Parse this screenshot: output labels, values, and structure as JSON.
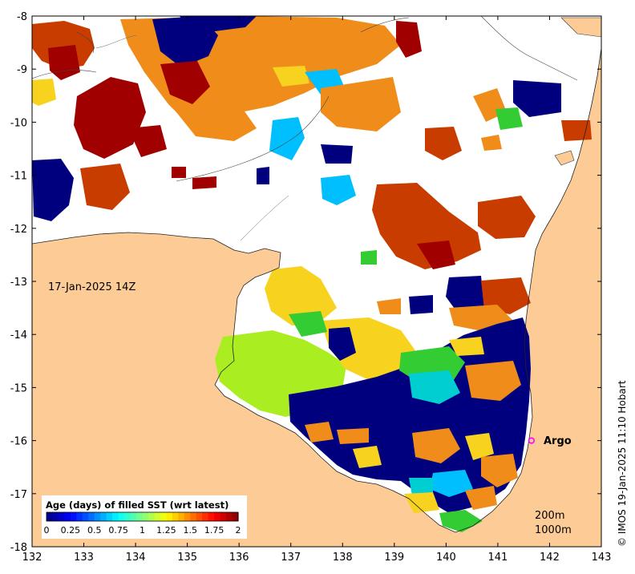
{
  "map": {
    "timestamp_label": "17-Jan-2025 14Z",
    "credit": "© IMOS 19-Jan-2025 11:10 Hobart",
    "argo_label": "Argo",
    "depth_labels": [
      "200m",
      "1000m"
    ],
    "x_ticks": [
      "132",
      "133",
      "134",
      "135",
      "136",
      "137",
      "138",
      "139",
      "140",
      "141",
      "142",
      "143"
    ],
    "y_ticks": [
      "-8",
      "-9",
      "-10",
      "-11",
      "-12",
      "-13",
      "-14",
      "-15",
      "-16",
      "-17",
      "-18"
    ],
    "lon_range": [
      132,
      143
    ],
    "lat_range": [
      -18,
      -8
    ],
    "argo_position": {
      "lon": 141.65,
      "lat": -16.0
    },
    "colorbar": {
      "title": "Age (days) of filled SST (wrt latest)",
      "tick_labels": [
        "0",
        "0.25",
        "0.5",
        "0.75",
        "1",
        "1.25",
        "1.5",
        "1.75",
        "2"
      ],
      "range": [
        0,
        2
      ],
      "colors": [
        "#00007f",
        "#0000ff",
        "#007fff",
        "#00ffff",
        "#7fff7f",
        "#ffff00",
        "#ff7f00",
        "#ff0000",
        "#7f0000"
      ]
    },
    "colors": {
      "land": "#fdcb96",
      "no_data": "#ffffff",
      "age_0": "#00007f",
      "age_0_5": "#00bfff",
      "age_1": "#33cc33",
      "age_1_25": "#aaee22",
      "age_1_5": "#f7d21e",
      "age_1_75": "#f08c1a",
      "age_1_9": "#c83c00",
      "age_2": "#a00000",
      "argo_marker": "#ff00ff"
    }
  }
}
